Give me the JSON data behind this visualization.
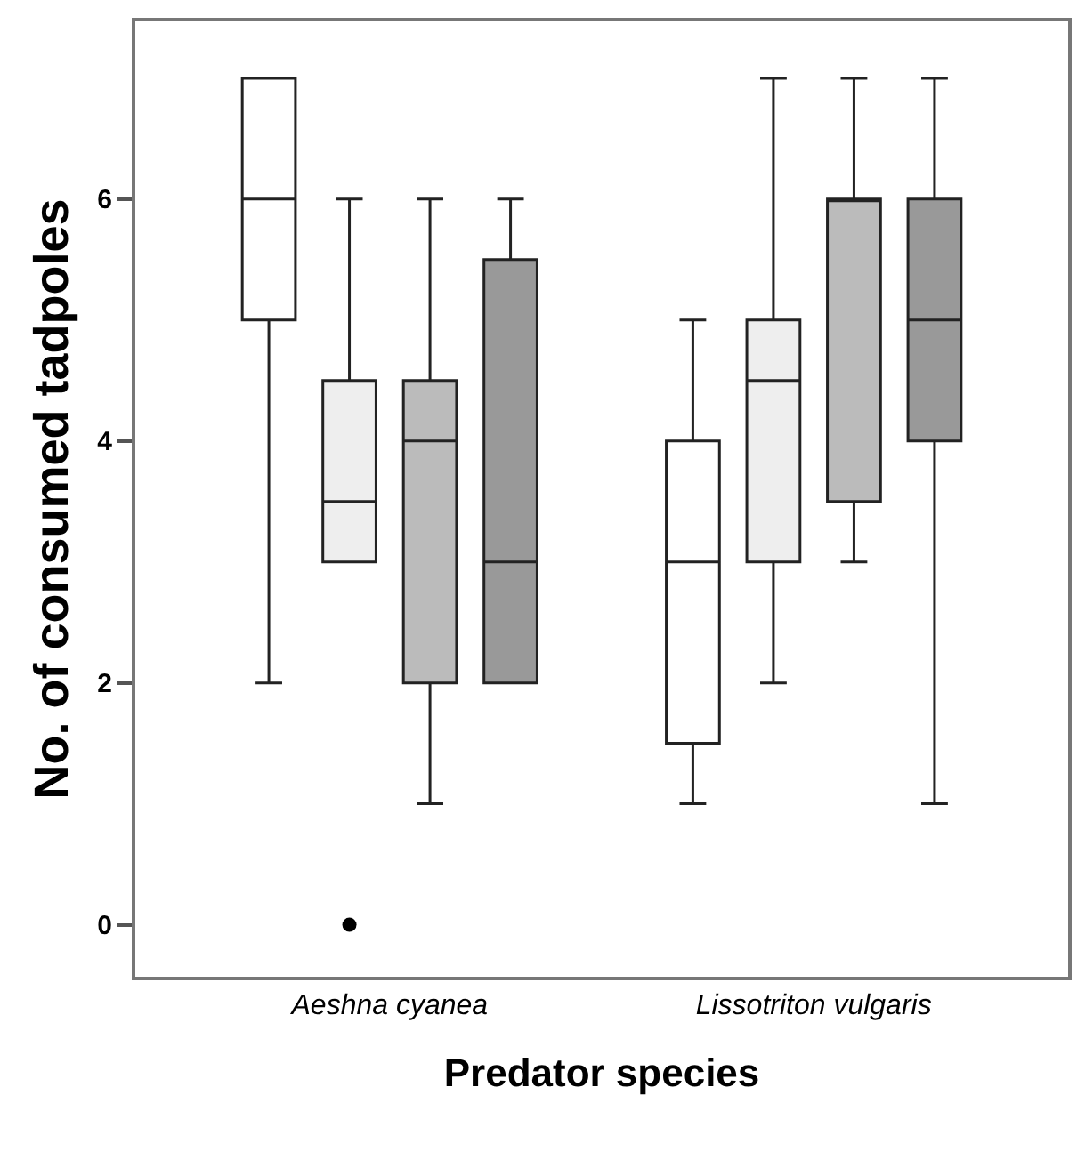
{
  "chart_data": {
    "type": "box",
    "xlabel": "Predator species",
    "ylabel": "No. of consumed tadpoles",
    "categories": [
      "Aeshna cyanea",
      "Lissotriton vulgaris"
    ],
    "ylim": [
      -0.43,
      7.47
    ],
    "yticks": [
      0,
      2,
      4,
      6
    ],
    "grid": false,
    "series": [
      {
        "color": "#ffffff",
        "boxes": [
          {
            "low": 2,
            "q1": 5,
            "median": 6,
            "q3": 7,
            "high": 7
          },
          {
            "low": 1,
            "q1": 1.5,
            "median": 3,
            "q3": 4,
            "high": 5
          }
        ]
      },
      {
        "color": "#eeeeee",
        "boxes": [
          {
            "low": 3,
            "q1": 3,
            "median": 3.5,
            "q3": 4.5,
            "high": 6,
            "outliers": [
              0
            ]
          },
          {
            "low": 2,
            "q1": 3,
            "median": 4.5,
            "q3": 5,
            "high": 7
          }
        ]
      },
      {
        "color": "#bbbbbb",
        "boxes": [
          {
            "low": 1,
            "q1": 2,
            "median": 4,
            "q3": 4.5,
            "high": 6
          },
          {
            "low": 3,
            "q1": 3.5,
            "median": 6,
            "q3": 6,
            "high": 7
          }
        ]
      },
      {
        "color": "#999999",
        "boxes": [
          {
            "low": 2,
            "q1": 2,
            "median": 3,
            "q3": 5.5,
            "high": 6
          },
          {
            "low": 1,
            "q1": 4,
            "median": 5,
            "q3": 6,
            "high": 7
          }
        ]
      }
    ]
  }
}
